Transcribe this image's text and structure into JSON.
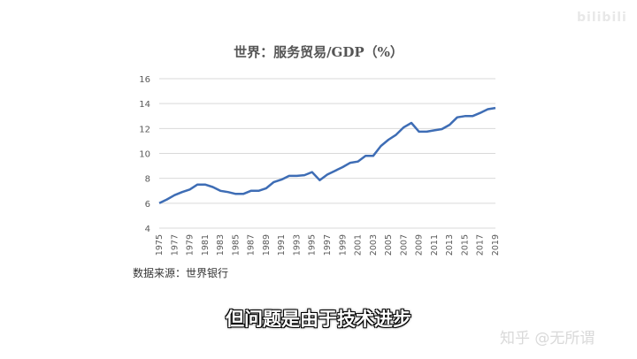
{
  "chart_data": {
    "type": "line",
    "title": "世界：服务贸易/GDP（%）",
    "ylim": [
      4,
      16
    ],
    "yticks": [
      4,
      6,
      8,
      10,
      12,
      14,
      16
    ],
    "xtick_labels": [
      "1975",
      "1977",
      "1979",
      "1981",
      "1983",
      "1985",
      "1987",
      "1989",
      "1991",
      "1993",
      "1995",
      "1997",
      "1999",
      "2001",
      "2003",
      "2005",
      "2007",
      "2009",
      "2011",
      "2013",
      "2015",
      "2017",
      "2019"
    ],
    "grid": "horizontal",
    "legend": "none",
    "series": [
      {
        "color": "#3e6db5",
        "x": [
          1975,
          1976,
          1977,
          1978,
          1979,
          1980,
          1981,
          1982,
          1983,
          1984,
          1985,
          1986,
          1987,
          1988,
          1989,
          1990,
          1991,
          1992,
          1993,
          1994,
          1995,
          1996,
          1997,
          1998,
          1999,
          2000,
          2001,
          2002,
          2003,
          2004,
          2005,
          2006,
          2007,
          2008,
          2009,
          2010,
          2011,
          2012,
          2013,
          2014,
          2015,
          2016,
          2017,
          2018,
          2019
        ],
        "values": [
          6.0,
          6.3,
          6.65,
          6.9,
          7.1,
          7.5,
          7.5,
          7.3,
          7.0,
          6.9,
          6.75,
          6.75,
          7.0,
          7.0,
          7.2,
          7.7,
          7.9,
          8.2,
          8.2,
          8.25,
          8.5,
          7.85,
          8.3,
          8.6,
          8.9,
          9.25,
          9.35,
          9.8,
          9.8,
          10.6,
          11.1,
          11.5,
          12.1,
          12.45,
          11.75,
          11.75,
          11.85,
          11.95,
          12.3,
          12.9,
          13.0,
          13.0,
          13.25,
          13.55,
          13.65
        ]
      }
    ]
  },
  "source_label": "数据来源：世界银行",
  "subtitle_text": "但问题是由于技术进步",
  "brand_text": "知乎 @无所谓",
  "watermark_text": "bilibili"
}
